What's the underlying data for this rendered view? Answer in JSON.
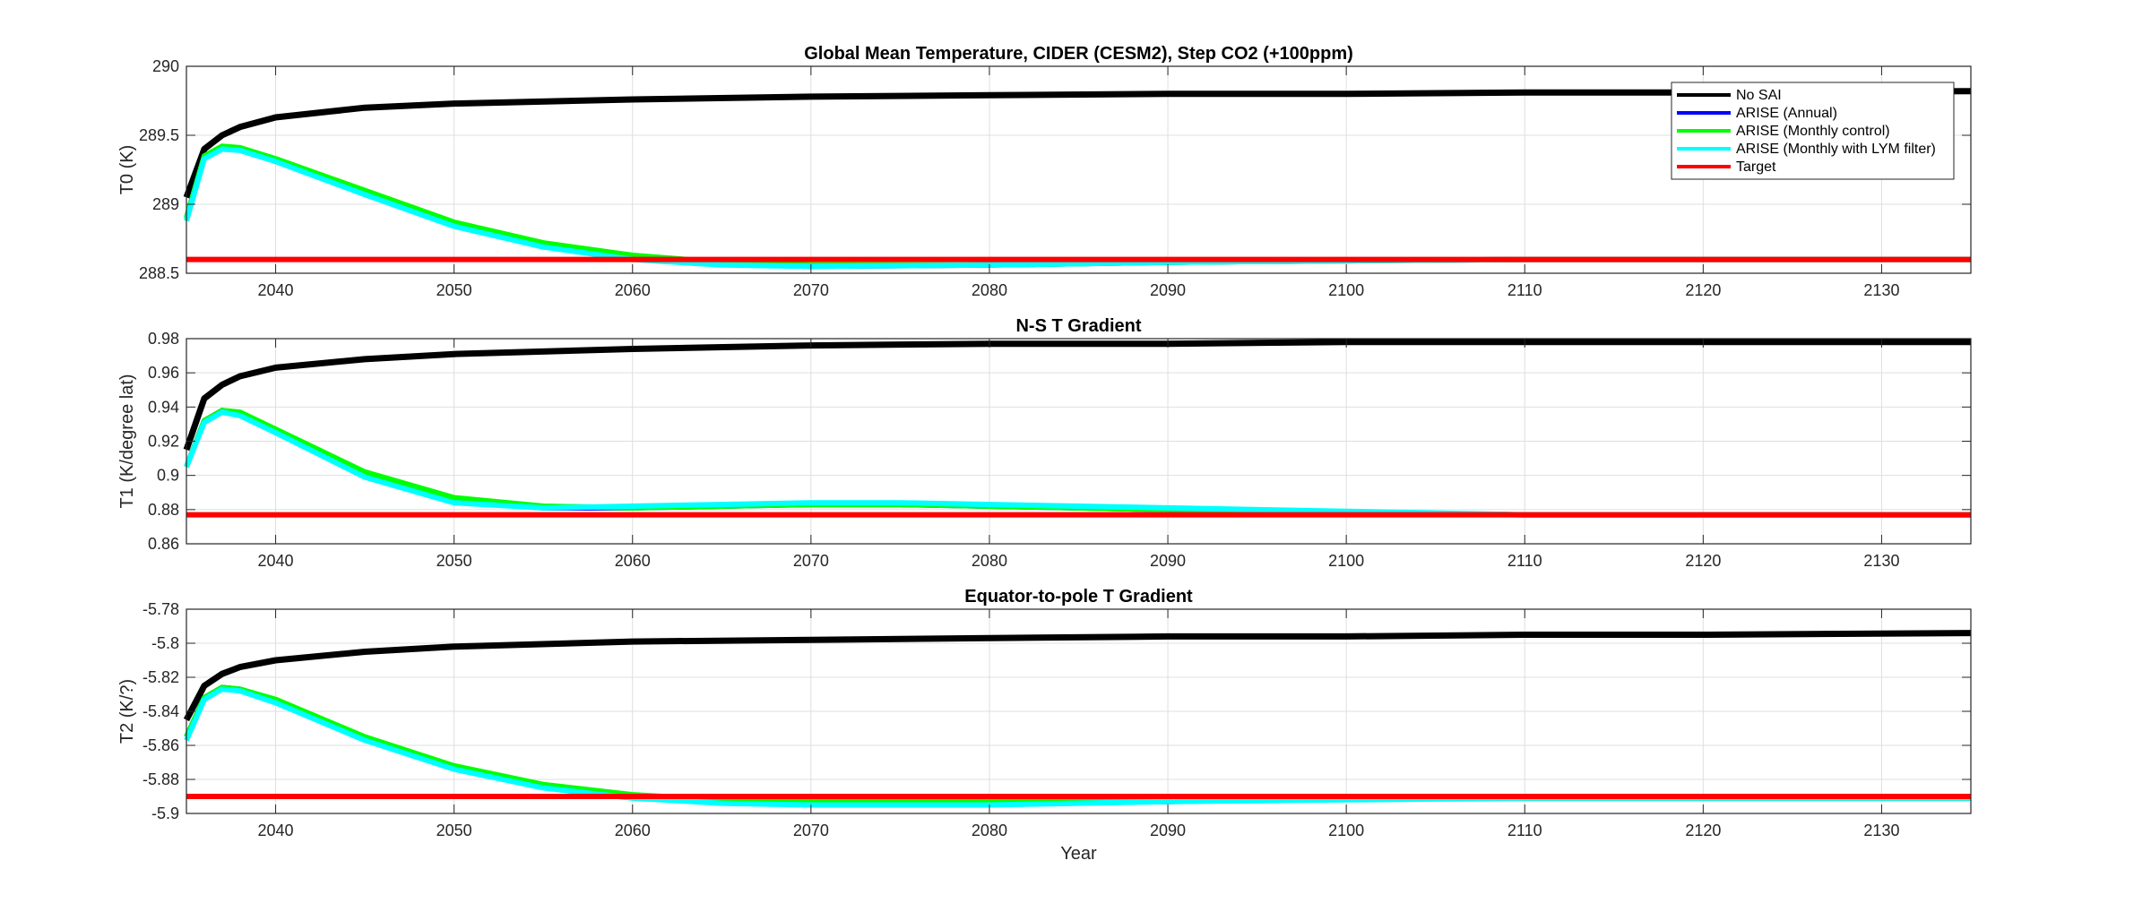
{
  "figure": {
    "xlabel": "Year"
  },
  "colors": {
    "no_sai": "#000000",
    "annual": "#0000ff",
    "monthly_control": "#00ff00",
    "monthly_lym": "#00ffff",
    "target": "#ff0000"
  },
  "chart_data": [
    {
      "type": "line",
      "title": "Global Mean Temperature, CIDER (CESM2), Step CO2 (+100ppm)",
      "ylabel": "T0 (K)",
      "xlabel": "",
      "xlim": [
        2035,
        2135
      ],
      "ylim": [
        288.5,
        290
      ],
      "xticks": [
        2040,
        2050,
        2060,
        2070,
        2080,
        2090,
        2100,
        2110,
        2120,
        2130
      ],
      "yticks": [
        288.5,
        289,
        289.5,
        290
      ],
      "ytick_labels": [
        "288.5",
        "289",
        "289.5",
        "290"
      ],
      "grid": true,
      "legend": {
        "placement": "top-right",
        "entries": [
          "No SAI",
          "ARISE (Annual)",
          "ARISE (Monthly control)",
          "ARISE (Monthly with LYM filter)",
          "Target"
        ]
      },
      "series": [
        {
          "name": "No SAI",
          "color": "#000000",
          "x": [
            2035,
            2036,
            2037,
            2038,
            2040,
            2045,
            2050,
            2060,
            2070,
            2080,
            2090,
            2100,
            2110,
            2120,
            2135
          ],
          "y": [
            289.05,
            289.4,
            289.5,
            289.56,
            289.63,
            289.7,
            289.73,
            289.76,
            289.78,
            289.79,
            289.8,
            289.8,
            289.81,
            289.81,
            289.82
          ]
        },
        {
          "name": "ARISE (Annual)",
          "color": "#0000ff",
          "x": [
            2035,
            2036,
            2037,
            2038,
            2040,
            2045,
            2050,
            2055,
            2060,
            2065,
            2070,
            2080,
            2090,
            2100,
            2110,
            2120,
            2135
          ],
          "y": [
            288.9,
            289.35,
            289.41,
            289.4,
            289.32,
            289.08,
            288.85,
            288.7,
            288.61,
            288.57,
            288.55,
            288.56,
            288.58,
            288.59,
            288.6,
            288.6,
            288.6
          ]
        },
        {
          "name": "ARISE (Monthly control)",
          "color": "#00ff00",
          "x": [
            2035,
            2036,
            2037,
            2038,
            2040,
            2045,
            2050,
            2055,
            2060,
            2065,
            2070,
            2080,
            2090,
            2100,
            2110,
            2120,
            2135
          ],
          "y": [
            288.9,
            289.35,
            289.42,
            289.41,
            289.33,
            289.1,
            288.87,
            288.72,
            288.63,
            288.58,
            288.56,
            288.56,
            288.58,
            288.59,
            288.6,
            288.6,
            288.6
          ]
        },
        {
          "name": "ARISE (Monthly with LYM filter)",
          "color": "#00ffff",
          "x": [
            2035,
            2036,
            2037,
            2038,
            2040,
            2045,
            2050,
            2055,
            2060,
            2065,
            2070,
            2080,
            2090,
            2100,
            2110,
            2120,
            2135
          ],
          "y": [
            288.88,
            289.33,
            289.4,
            289.39,
            289.31,
            289.07,
            288.84,
            288.69,
            288.6,
            288.56,
            288.55,
            288.56,
            288.58,
            288.59,
            288.6,
            288.6,
            288.6
          ]
        },
        {
          "name": "Target",
          "color": "#ff0000",
          "x": [
            2035,
            2135
          ],
          "y": [
            288.6,
            288.6
          ]
        }
      ]
    },
    {
      "type": "line",
      "title": "N-S T Gradient",
      "ylabel": "T1 (K/degree lat)",
      "xlabel": "",
      "xlim": [
        2035,
        2135
      ],
      "ylim": [
        0.86,
        0.98
      ],
      "xticks": [
        2040,
        2050,
        2060,
        2070,
        2080,
        2090,
        2100,
        2110,
        2120,
        2130
      ],
      "yticks": [
        0.86,
        0.88,
        0.9,
        0.92,
        0.94,
        0.96,
        0.98
      ],
      "ytick_labels": [
        "0.86",
        "0.88",
        "0.9",
        "0.92",
        "0.94",
        "0.96",
        "0.98"
      ],
      "grid": true,
      "series": [
        {
          "name": "No SAI",
          "color": "#000000",
          "x": [
            2035,
            2036,
            2037,
            2038,
            2040,
            2045,
            2050,
            2060,
            2070,
            2080,
            2090,
            2100,
            2110,
            2120,
            2135
          ],
          "y": [
            0.915,
            0.945,
            0.953,
            0.958,
            0.963,
            0.968,
            0.971,
            0.974,
            0.976,
            0.977,
            0.977,
            0.978,
            0.978,
            0.978,
            0.978
          ]
        },
        {
          "name": "ARISE (Annual)",
          "color": "#0000ff",
          "x": [
            2035,
            2036,
            2037,
            2038,
            2040,
            2045,
            2050,
            2055,
            2060,
            2065,
            2070,
            2075,
            2080,
            2090,
            2100,
            2110,
            2120,
            2135
          ],
          "y": [
            0.905,
            0.932,
            0.938,
            0.936,
            0.926,
            0.9,
            0.885,
            0.881,
            0.881,
            0.882,
            0.883,
            0.883,
            0.882,
            0.88,
            0.878,
            0.877,
            0.877,
            0.877
          ]
        },
        {
          "name": "ARISE (Monthly control)",
          "color": "#00ff00",
          "x": [
            2035,
            2036,
            2037,
            2038,
            2040,
            2045,
            2050,
            2055,
            2060,
            2065,
            2070,
            2075,
            2080,
            2090,
            2100,
            2110,
            2120,
            2135
          ],
          "y": [
            0.905,
            0.932,
            0.938,
            0.937,
            0.927,
            0.902,
            0.887,
            0.882,
            0.881,
            0.882,
            0.883,
            0.883,
            0.882,
            0.88,
            0.878,
            0.877,
            0.877,
            0.877
          ]
        },
        {
          "name": "ARISE (Monthly with LYM filter)",
          "color": "#00ffff",
          "x": [
            2035,
            2036,
            2037,
            2038,
            2040,
            2045,
            2050,
            2055,
            2060,
            2065,
            2070,
            2075,
            2080,
            2090,
            2100,
            2110,
            2120,
            2135
          ],
          "y": [
            0.905,
            0.931,
            0.937,
            0.935,
            0.925,
            0.899,
            0.884,
            0.881,
            0.882,
            0.883,
            0.884,
            0.884,
            0.883,
            0.881,
            0.879,
            0.877,
            0.877,
            0.877
          ]
        },
        {
          "name": "Target",
          "color": "#ff0000",
          "x": [
            2035,
            2135
          ],
          "y": [
            0.877,
            0.877
          ]
        }
      ]
    },
    {
      "type": "line",
      "title": "Equator-to-pole T Gradient",
      "ylabel": "T2 (K/?)",
      "xlabel": "Year",
      "xlim": [
        2035,
        2135
      ],
      "ylim": [
        -5.9,
        -5.78
      ],
      "xticks": [
        2040,
        2050,
        2060,
        2070,
        2080,
        2090,
        2100,
        2110,
        2120,
        2130
      ],
      "yticks": [
        -5.9,
        -5.88,
        -5.86,
        -5.84,
        -5.82,
        -5.8,
        -5.78
      ],
      "ytick_labels": [
        "-5.9",
        "-5.88",
        "-5.86",
        "-5.84",
        "-5.82",
        "-5.8",
        "-5.78"
      ],
      "grid": true,
      "series": [
        {
          "name": "No SAI",
          "color": "#000000",
          "x": [
            2035,
            2036,
            2037,
            2038,
            2040,
            2045,
            2050,
            2060,
            2070,
            2080,
            2090,
            2100,
            2110,
            2120,
            2135
          ],
          "y": [
            -5.845,
            -5.825,
            -5.818,
            -5.814,
            -5.81,
            -5.805,
            -5.802,
            -5.799,
            -5.798,
            -5.797,
            -5.796,
            -5.796,
            -5.795,
            -5.795,
            -5.794
          ]
        },
        {
          "name": "ARISE (Annual)",
          "color": "#0000ff",
          "x": [
            2035,
            2036,
            2037,
            2038,
            2040,
            2045,
            2050,
            2055,
            2060,
            2065,
            2070,
            2080,
            2090,
            2100,
            2110,
            2120,
            2135
          ],
          "y": [
            -5.855,
            -5.832,
            -5.826,
            -5.827,
            -5.834,
            -5.856,
            -5.873,
            -5.884,
            -5.89,
            -5.893,
            -5.894,
            -5.894,
            -5.893,
            -5.891,
            -5.891,
            -5.891,
            -5.891
          ]
        },
        {
          "name": "ARISE (Monthly control)",
          "color": "#00ff00",
          "x": [
            2035,
            2036,
            2037,
            2038,
            2040,
            2045,
            2050,
            2055,
            2060,
            2065,
            2070,
            2080,
            2090,
            2100,
            2110,
            2120,
            2135
          ],
          "y": [
            -5.855,
            -5.832,
            -5.826,
            -5.827,
            -5.833,
            -5.855,
            -5.872,
            -5.883,
            -5.889,
            -5.892,
            -5.893,
            -5.893,
            -5.892,
            -5.891,
            -5.891,
            -5.891,
            -5.891
          ]
        },
        {
          "name": "ARISE (Monthly with LYM filter)",
          "color": "#00ffff",
          "x": [
            2035,
            2036,
            2037,
            2038,
            2040,
            2045,
            2050,
            2055,
            2060,
            2065,
            2070,
            2080,
            2090,
            2100,
            2110,
            2120,
            2135
          ],
          "y": [
            -5.857,
            -5.833,
            -5.827,
            -5.828,
            -5.835,
            -5.857,
            -5.874,
            -5.885,
            -5.891,
            -5.894,
            -5.895,
            -5.895,
            -5.893,
            -5.892,
            -5.891,
            -5.891,
            -5.891
          ]
        },
        {
          "name": "Target",
          "color": "#ff0000",
          "x": [
            2035,
            2135
          ],
          "y": [
            -5.89,
            -5.89
          ]
        }
      ]
    }
  ]
}
